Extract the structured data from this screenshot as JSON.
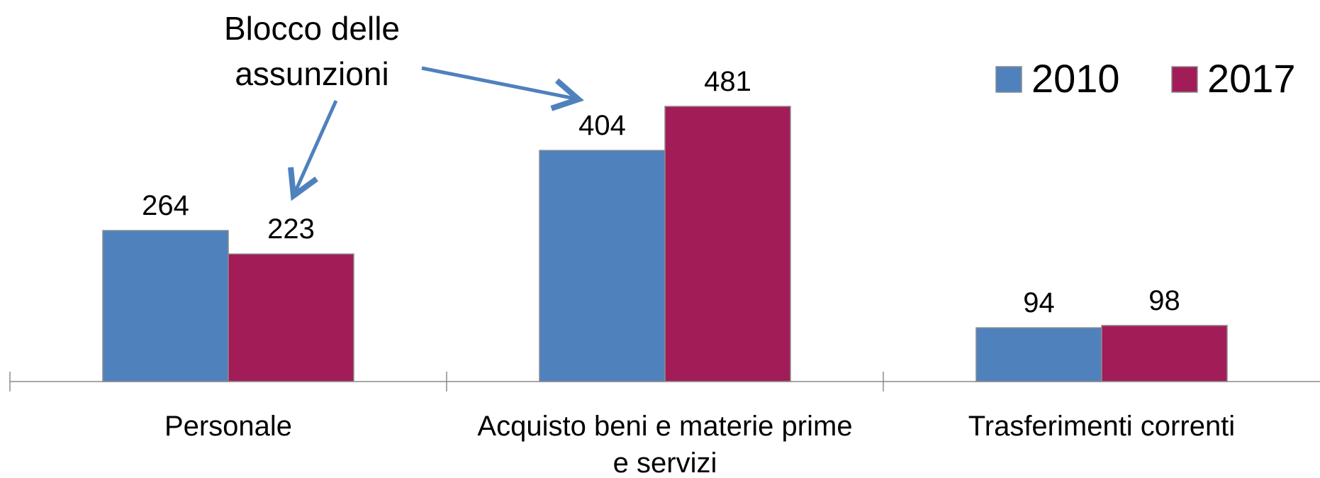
{
  "chart_data": {
    "type": "bar",
    "categories": [
      "Personale",
      "Acquisto beni e materie prime e servizi",
      "Trasferimenti correnti"
    ],
    "category_lines": [
      [
        "Personale"
      ],
      [
        "Acquisto beni e materie prime",
        "e servizi"
      ],
      [
        "Trasferimenti correnti"
      ]
    ],
    "series": [
      {
        "name": "2010",
        "values": [
          264,
          404,
          94
        ],
        "color": "#4f81bd"
      },
      {
        "name": "2017",
        "values": [
          223,
          481,
          98
        ],
        "color": "#a21c57"
      }
    ],
    "ylim": [
      0,
      600
    ],
    "grid": false,
    "legend": "top-right",
    "annotation": {
      "text": "Blocco delle\nassunzioni",
      "points_to": [
        "Personale 2017",
        "Acquisto beni e materie prime e servizi 2010"
      ],
      "arrow_color": "#4f81bd"
    }
  }
}
